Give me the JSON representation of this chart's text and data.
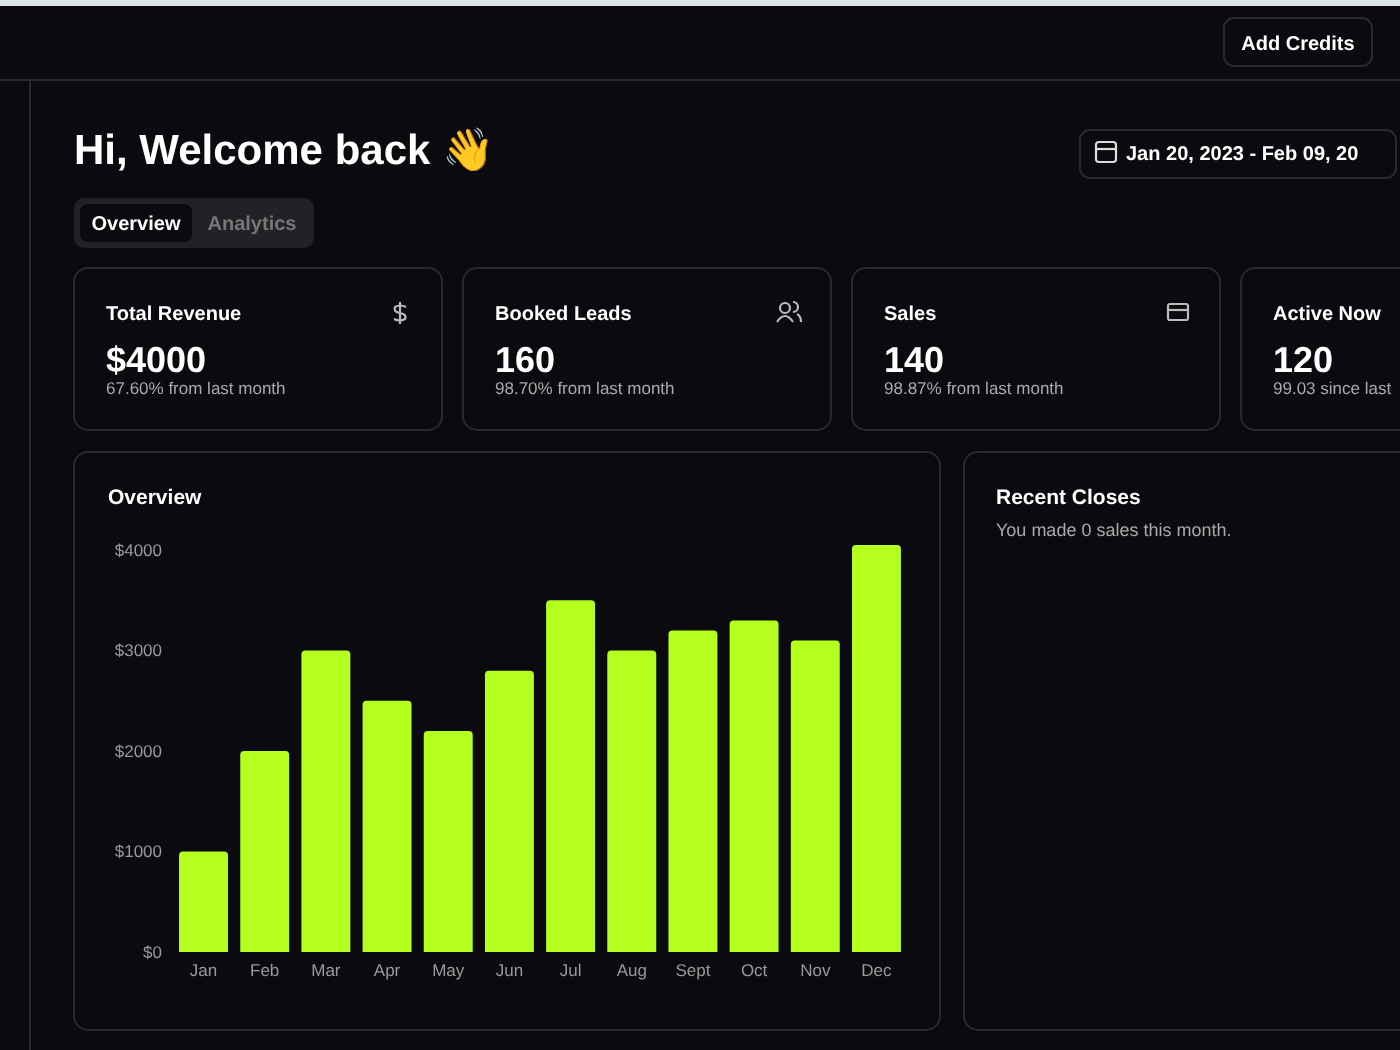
{
  "chart_data": [
    {
      "type": "other",
      "title": "Hi, Welcome back 👋",
      "annotations": [
        "Add Credits",
        "Jan 20, 2023 - Feb 09, 20",
        "Overview",
        "Analytics"
      ]
    },
    {
      "type": "other",
      "title": "Total Revenue",
      "annotations": [
        "$4000",
        "67.60% from last month"
      ]
    },
    {
      "type": "other",
      "title": "Booked Leads",
      "annotations": [
        "160",
        "98.70% from last month"
      ]
    },
    {
      "type": "other",
      "title": "Sales",
      "annotations": [
        "140",
        "98.87% from last month"
      ]
    },
    {
      "type": "other",
      "title": "Active Now",
      "annotations": [
        "120",
        "99.03 since last"
      ]
    },
    {
      "type": "bar",
      "title": "Overview",
      "categories": [
        "Jan",
        "Feb",
        "Mar",
        "Apr",
        "May",
        "Jun",
        "Jul",
        "Aug",
        "Sept",
        "Oct",
        "Nov",
        "Dec"
      ],
      "values": [
        1000,
        2000,
        3000,
        2500,
        2200,
        2800,
        3500,
        3000,
        3200,
        3300,
        3100,
        4050
      ],
      "color": "#b5ff1f",
      "ylim": [
        0,
        4100
      ],
      "yticks": [
        {
          "value": 0,
          "label": "$0"
        },
        {
          "value": 1000,
          "label": "$1000"
        },
        {
          "value": 2000,
          "label": "$2000"
        },
        {
          "value": 3000,
          "label": "$3000"
        },
        {
          "value": 4000,
          "label": "$4000"
        }
      ]
    },
    {
      "type": "other",
      "title": "Recent Closes",
      "annotations": [
        "You made 0 sales this month."
      ]
    }
  ]
}
